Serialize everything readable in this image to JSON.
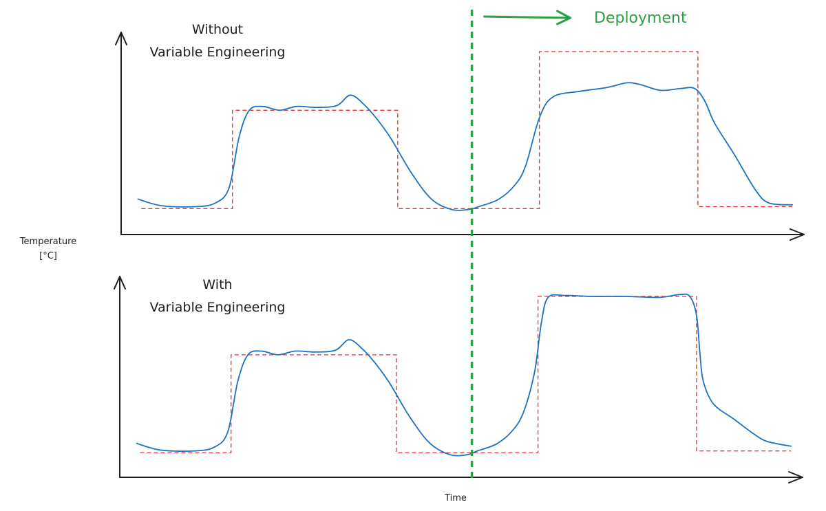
{
  "chart_data": {
    "type": "line",
    "ylabel": [
      "Temperature",
      "[°C]"
    ],
    "xlabel": "Time",
    "deployment_label": "Deployment",
    "x_range": [
      0,
      100
    ],
    "y_range": [
      0,
      100
    ],
    "deployment_x": 52,
    "colors": {
      "actual": "#1971c2",
      "target": "#e03131",
      "deployment": "#2f9e44",
      "axis": "#1e1e1e"
    },
    "panels": [
      {
        "title": [
          "Without",
          "Variable Engineering"
        ],
        "series": [
          {
            "key": "target",
            "style": "dashed-step",
            "x": [
              3,
              16.5,
              16.5,
              41,
              41,
              62,
              62,
              85.5,
              85.5,
              99.5
            ],
            "y": [
              17,
              17,
              69,
              69,
              17,
              17,
              100,
              100,
              18,
              18
            ]
          },
          {
            "key": "actual",
            "style": "smooth",
            "x": [
              2.5,
              6,
              11,
              14,
              16,
              17.5,
              19,
              21,
              23.5,
              26,
              29,
              32,
              34,
              36,
              38,
              40,
              43,
              46,
              49,
              51.5,
              53,
              56,
              58.5,
              60,
              62,
              64,
              68,
              72,
              75,
              77,
              80,
              83,
              85,
              86.5,
              88,
              91,
              94,
              96,
              99.5
            ],
            "y": [
              22,
              18.5,
              18,
              20,
              28,
              55,
              69,
              71,
              69,
              71,
              70.5,
              71.5,
              77,
              72,
              64,
              54,
              36,
              22,
              16.5,
              16.5,
              18,
              22,
              30,
              40,
              65,
              76,
              79,
              81,
              83.5,
              82.5,
              79.5,
              80.5,
              80.5,
              74,
              62,
              45,
              27,
              20,
              19
            ]
          }
        ]
      },
      {
        "title": [
          "With",
          "Variable Engineering"
        ],
        "series": [
          {
            "key": "target",
            "style": "dashed-step",
            "x": [
              3,
              16.5,
              16.5,
              41,
              41,
              62,
              62,
              85.5,
              85.5,
              99.5
            ],
            "y": [
              17,
              17,
              69,
              69,
              17,
              17,
              100,
              100,
              18,
              18
            ]
          },
          {
            "key": "actual",
            "style": "smooth",
            "x": [
              2.5,
              6,
              11,
              14,
              16,
              17.5,
              19,
              21,
              23.5,
              26,
              29,
              32,
              34,
              36,
              38,
              40,
              43,
              46,
              49,
              51.5,
              53,
              56,
              58.5,
              60,
              61.5,
              62.5,
              63.5,
              66,
              70,
              75,
              80,
              83,
              84.5,
              85.5,
              86,
              86.5,
              88,
              91,
              94,
              96,
              99.5
            ],
            "y": [
              22,
              18.5,
              18,
              20,
              28,
              55,
              69,
              71,
              69,
              71,
              70.5,
              71.5,
              77,
              72,
              64,
              54,
              36,
              22,
              16,
              16,
              18,
              22,
              30,
              40,
              60,
              86,
              99.5,
              100.5,
              100,
              100,
              99.5,
              101,
              100,
              90,
              70,
              55,
              43,
              35,
              27,
              23,
              20.5
            ]
          }
        ]
      }
    ]
  }
}
